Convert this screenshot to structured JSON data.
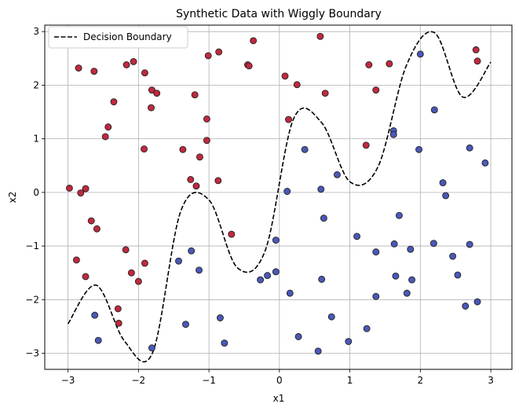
{
  "chart_data": {
    "type": "scatter",
    "title": "Synthetic Data with Wiggly Boundary",
    "xlabel": "x1",
    "ylabel": "x2",
    "xlim": [
      -3.33,
      3.3
    ],
    "ylim": [
      -3.3,
      3.12
    ],
    "xticks": [
      -3,
      -2,
      -1,
      0,
      1,
      2,
      3
    ],
    "yticks": [
      -3,
      -2,
      -1,
      0,
      1,
      2,
      3
    ],
    "grid": true,
    "legend_position": "top-left",
    "boundary": {
      "name": "Decision Boundary",
      "style": "dashed",
      "color": "#000000",
      "x_range": [
        -3,
        3
      ],
      "y": [
        -2.45,
        -1.73,
        -2.77,
        -2.99,
        -0.35,
        -0.14,
        -1.4,
        -1.08,
        1.37,
        1.3,
        0.2,
        0.48,
        2.36,
        2.98,
        1.78,
        2.43
      ]
    },
    "series": [
      {
        "color": "#c0293f",
        "points": [
          [
            -2.85,
            2.32
          ],
          [
            -2.63,
            2.26
          ],
          [
            -2.27,
            2.78
          ],
          [
            -2.17,
            2.38
          ],
          [
            -2.07,
            2.44
          ],
          [
            -1.91,
            2.23
          ],
          [
            -1.81,
            1.91
          ],
          [
            -1.74,
            1.85
          ],
          [
            -1.82,
            1.58
          ],
          [
            -2.35,
            1.69
          ],
          [
            -2.43,
            1.22
          ],
          [
            -2.47,
            1.04
          ],
          [
            -1.92,
            0.81
          ],
          [
            -1.37,
            0.8
          ],
          [
            -1.2,
            1.82
          ],
          [
            -1.03,
            1.37
          ],
          [
            -1.03,
            0.97
          ],
          [
            -1.13,
            0.66
          ],
          [
            -1.01,
            2.55
          ],
          [
            -0.86,
            2.62
          ],
          [
            -0.45,
            2.38
          ],
          [
            -0.43,
            2.36
          ],
          [
            -0.37,
            2.83
          ],
          [
            -2.98,
            0.08
          ],
          [
            -2.82,
            -0.01
          ],
          [
            -2.75,
            0.07
          ],
          [
            -2.67,
            -0.53
          ],
          [
            -2.59,
            -0.68
          ],
          [
            -2.88,
            -1.26
          ],
          [
            -2.75,
            -1.57
          ],
          [
            -2.18,
            -1.07
          ],
          [
            -2.1,
            -1.5
          ],
          [
            -1.91,
            -1.32
          ],
          [
            -2.0,
            -1.66
          ],
          [
            -2.29,
            -2.17
          ],
          [
            -2.28,
            -2.44
          ],
          [
            -1.26,
            0.24
          ],
          [
            -1.18,
            0.12
          ],
          [
            -0.87,
            0.22
          ],
          [
            -0.68,
            -0.78
          ],
          [
            0.08,
            2.17
          ],
          [
            0.25,
            2.01
          ],
          [
            0.58,
            2.91
          ],
          [
            0.65,
            1.85
          ],
          [
            0.13,
            1.36
          ],
          [
            1.27,
            2.38
          ],
          [
            1.56,
            2.4
          ],
          [
            1.37,
            1.91
          ],
          [
            1.23,
            0.88
          ],
          [
            2.79,
            2.66
          ],
          [
            2.81,
            2.45
          ]
        ]
      },
      {
        "color": "#4a58b8",
        "points": [
          [
            2.0,
            2.58
          ],
          [
            2.2,
            1.54
          ],
          [
            1.62,
            1.15
          ],
          [
            1.62,
            1.08
          ],
          [
            1.98,
            0.8
          ],
          [
            2.7,
            0.83
          ],
          [
            2.92,
            0.55
          ],
          [
            2.32,
            0.18
          ],
          [
            2.36,
            -0.06
          ],
          [
            0.36,
            0.8
          ],
          [
            0.82,
            0.33
          ],
          [
            0.59,
            0.06
          ],
          [
            0.11,
            0.02
          ],
          [
            0.63,
            -0.48
          ],
          [
            1.7,
            -0.43
          ],
          [
            1.63,
            -0.96
          ],
          [
            1.1,
            -0.82
          ],
          [
            1.37,
            -1.11
          ],
          [
            1.86,
            -1.06
          ],
          [
            2.19,
            -0.95
          ],
          [
            2.7,
            -0.97
          ],
          [
            2.46,
            -1.19
          ],
          [
            -0.05,
            -0.89
          ],
          [
            -1.43,
            -1.28
          ],
          [
            -1.25,
            -1.09
          ],
          [
            -1.14,
            -1.45
          ],
          [
            -0.05,
            -1.48
          ],
          [
            -0.17,
            -1.55
          ],
          [
            -0.27,
            -1.63
          ],
          [
            0.6,
            -1.62
          ],
          [
            0.15,
            -1.88
          ],
          [
            1.65,
            -1.56
          ],
          [
            1.88,
            -1.63
          ],
          [
            1.81,
            -1.88
          ],
          [
            1.37,
            -1.94
          ],
          [
            2.53,
            -1.54
          ],
          [
            2.64,
            -2.12
          ],
          [
            2.81,
            -2.04
          ],
          [
            -2.62,
            -2.29
          ],
          [
            -2.57,
            -2.76
          ],
          [
            -1.33,
            -2.46
          ],
          [
            -0.84,
            -2.34
          ],
          [
            -1.81,
            -2.9
          ],
          [
            -0.78,
            -2.81
          ],
          [
            0.27,
            -2.69
          ],
          [
            0.74,
            -2.32
          ],
          [
            1.24,
            -2.54
          ],
          [
            0.98,
            -2.78
          ],
          [
            0.55,
            -2.96
          ]
        ]
      }
    ]
  }
}
